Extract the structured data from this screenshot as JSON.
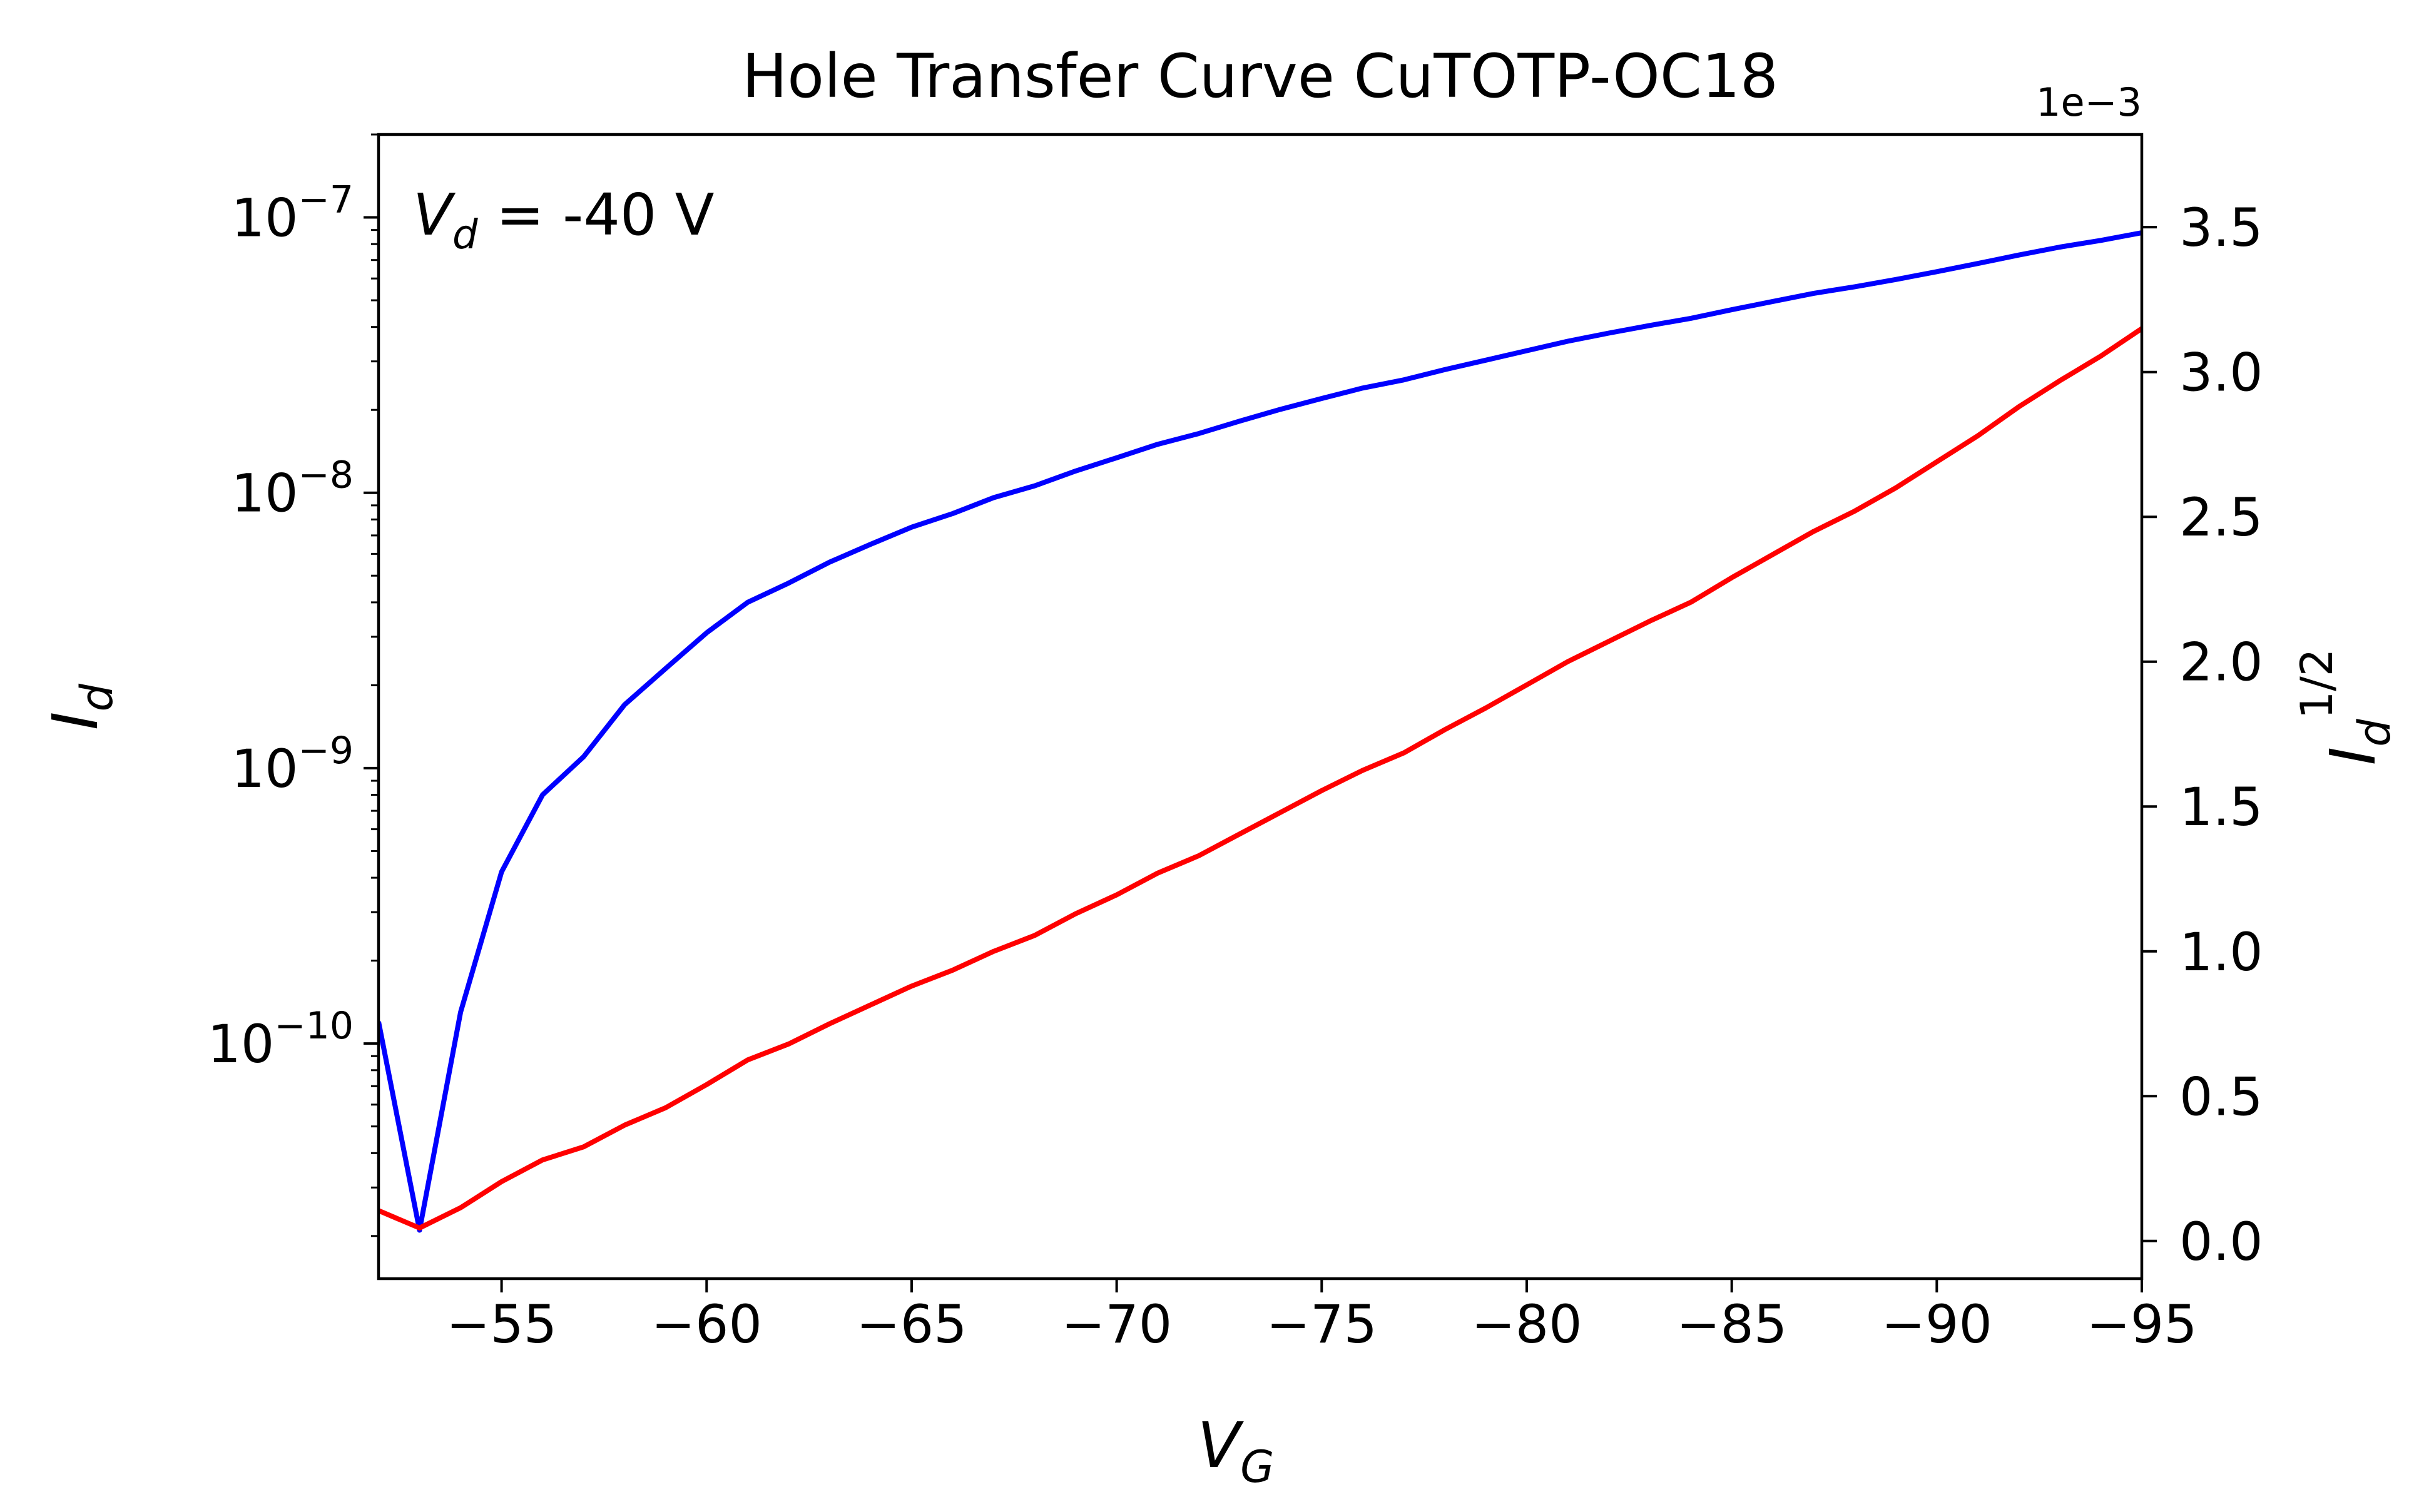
{
  "chart_data": {
    "type": "line",
    "title": "Hole Transfer Curve CuTOTP-OC18",
    "xlabel": {
      "base": "V",
      "sub": "G"
    },
    "ylabel_left": {
      "base": "I",
      "sub": "d",
      "color": "#0000ff"
    },
    "ylabel_right": {
      "base": "I",
      "sub": "d",
      "sup": "1/2",
      "color": "#ff0000"
    },
    "annotation": {
      "base": "V",
      "sub": "d",
      "rest": " = -40 V"
    },
    "right_axis_offset_text": "1e−3",
    "xlim": [
      -52,
      -95
    ],
    "y_left_scale": "log",
    "y_left_lim": [
      1.4e-11,
      2e-07
    ],
    "y_right_lim": [
      -0.00013,
      0.00382
    ],
    "x_ticks": [
      -55,
      -60,
      -65,
      -70,
      -75,
      -80,
      -85,
      -90,
      -95
    ],
    "x_tick_labels": [
      "−55",
      "−60",
      "−65",
      "−70",
      "−75",
      "−80",
      "−85",
      "−90",
      "−95"
    ],
    "y_left_ticks": [
      {
        "value": 1e-07,
        "mantissa": "10",
        "exponent": "−7"
      },
      {
        "value": 1e-08,
        "mantissa": "10",
        "exponent": "−8"
      },
      {
        "value": 1e-09,
        "mantissa": "10",
        "exponent": "−9"
      },
      {
        "value": 1e-10,
        "mantissa": "10",
        "exponent": "−10"
      }
    ],
    "y_right_ticks": [
      0.0,
      0.0005,
      0.001,
      0.0015,
      0.002,
      0.0025,
      0.003,
      0.0035
    ],
    "y_right_tick_labels": [
      "0.0",
      "0.5",
      "1.0",
      "1.5",
      "2.0",
      "2.5",
      "3.0",
      "3.5"
    ],
    "x": [
      -52,
      -53,
      -54,
      -55,
      -56,
      -57,
      -58,
      -59,
      -60,
      -61,
      -62,
      -63,
      -64,
      -65,
      -66,
      -67,
      -68,
      -69,
      -70,
      -71,
      -72,
      -73,
      -74,
      -75,
      -76,
      -77,
      -78,
      -79,
      -80,
      -81,
      -82,
      -83,
      -84,
      -85,
      -86,
      -87,
      -88,
      -89,
      -90,
      -91,
      -92,
      -93,
      -94,
      -95
    ],
    "series": [
      {
        "axis": "left",
        "color": "#0000ff",
        "values": [
          1.2e-10,
          2.1e-11,
          1.3e-10,
          4.2e-10,
          8e-10,
          1.1e-09,
          1.7e-09,
          2.3e-09,
          3.1e-09,
          4e-09,
          4.7e-09,
          5.6e-09,
          6.5e-09,
          7.5e-09,
          8.4e-09,
          9.6e-09,
          1.06e-08,
          1.2e-08,
          1.34e-08,
          1.5e-08,
          1.64e-08,
          1.82e-08,
          2.01e-08,
          2.2e-08,
          2.4e-08,
          2.57e-08,
          2.8e-08,
          3.03e-08,
          3.28e-08,
          3.55e-08,
          3.8e-08,
          4.05e-08,
          4.3e-08,
          4.62e-08,
          4.95e-08,
          5.3e-08,
          5.6e-08,
          5.95e-08,
          6.35e-08,
          6.8e-08,
          7.3e-08,
          7.8e-08,
          8.25e-08,
          8.8e-08
        ]
      },
      {
        "axis": "right",
        "color": "#ff0000",
        "values": [
          0.000105,
          4.5e-05,
          0.000115,
          0.000205,
          0.00028,
          0.000325,
          0.0004,
          0.00046,
          0.00054,
          0.000625,
          0.00068,
          0.00075,
          0.000815,
          0.00088,
          0.000935,
          0.001,
          0.001055,
          0.00113,
          0.001195,
          0.00127,
          0.00133,
          0.001405,
          0.00148,
          0.001555,
          0.001625,
          0.001685,
          0.001765,
          0.00184,
          0.00192,
          0.002,
          0.00207,
          0.00214,
          0.002205,
          0.00229,
          0.00237,
          0.00245,
          0.00252,
          0.0026,
          0.00269,
          0.00278,
          0.00288,
          0.00297,
          0.003055,
          0.00315
        ]
      }
    ]
  }
}
